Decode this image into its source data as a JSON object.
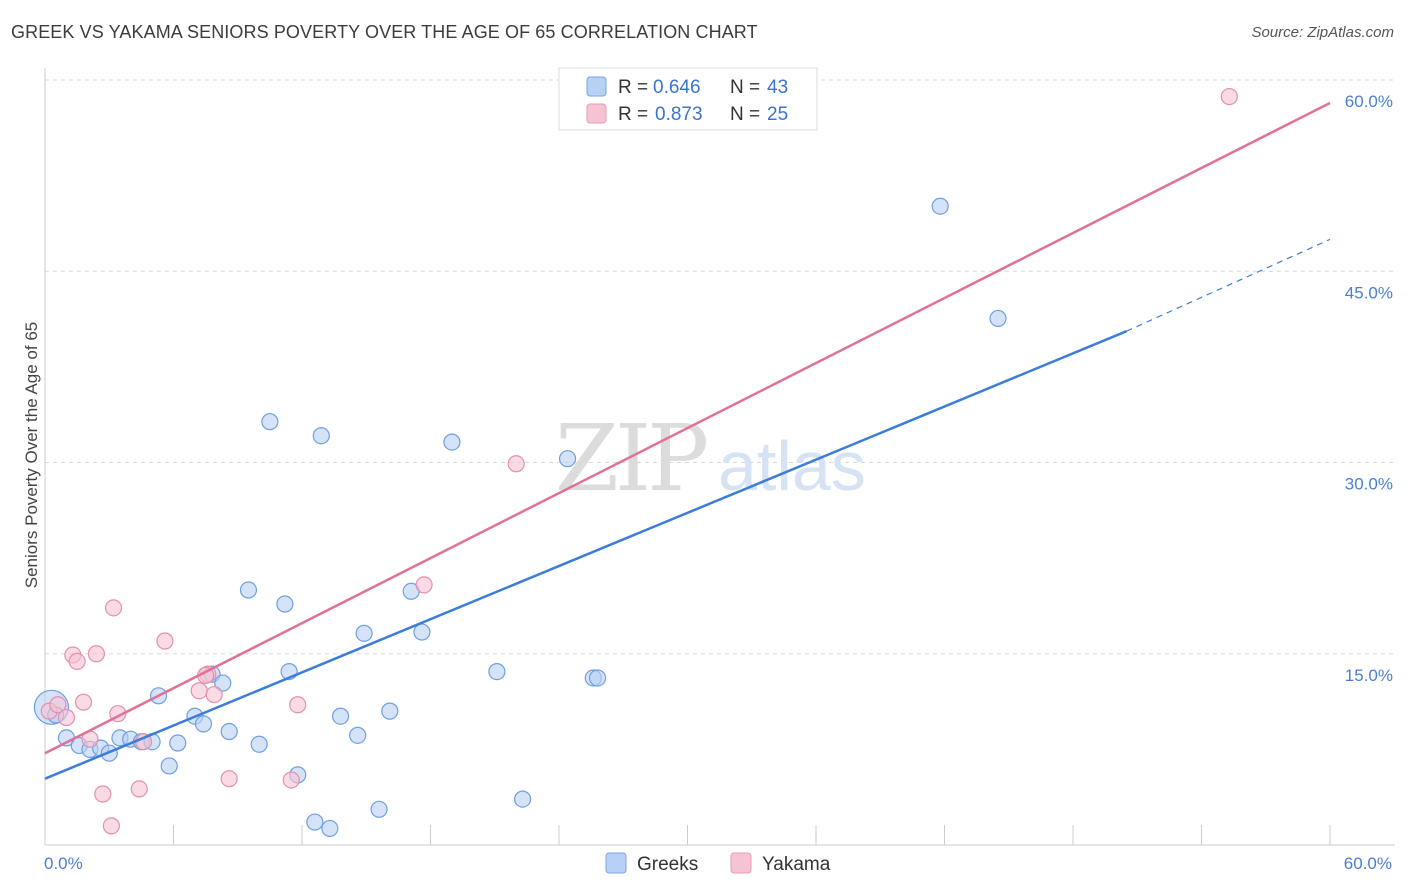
{
  "header": {
    "title": "GREEK VS YAKAMA SENIORS POVERTY OVER THE AGE OF 65 CORRELATION CHART",
    "source": "Source: ZipAtlas.com"
  },
  "watermark": {
    "zip": "ZIP",
    "atlas": "atlas"
  },
  "colors": {
    "greeks": "#3b7dd8",
    "greeks_fill": "#b8d0f3",
    "yakama": "#e07297",
    "yakama_fill": "#f6c3d3",
    "tick": "#4a7fd0",
    "grid": "#d8d8d8"
  },
  "chart_data": {
    "type": "scatter",
    "title": "GREEK VS YAKAMA SENIORS POVERTY OVER THE AGE OF 65 CORRELATION CHART",
    "xlabel": "",
    "ylabel": "Seniors Poverty Over the Age of 65",
    "xlim": [
      0,
      60
    ],
    "ylim": [
      0,
      60
    ],
    "x_tick_labels": [
      "0.0%",
      "60.0%"
    ],
    "y_tick_labels": [
      "15.0%",
      "30.0%",
      "45.0%",
      "60.0%"
    ],
    "y_ticks": [
      15,
      30,
      45,
      60
    ],
    "grid": true,
    "legend": [
      {
        "name": "Greeks",
        "R_label": "R =",
        "R": "0.646",
        "N_label": "N =",
        "N": "43"
      },
      {
        "name": "Yakama",
        "R_label": "R =",
        "R": "0.873",
        "N_label": "N =",
        "N": "25"
      }
    ],
    "series": [
      {
        "name": "Greeks",
        "trend": {
          "x0": 0,
          "y0": 5.2,
          "x1": 50.5,
          "y1": 40.3,
          "dash_to_x": 60,
          "dash_to_y": 47.5
        },
        "points": [
          [
            0.3,
            10.8
          ],
          [
            0.5,
            10.2
          ],
          [
            1.0,
            8.4
          ],
          [
            1.6,
            7.8
          ],
          [
            2.1,
            7.5
          ],
          [
            2.6,
            7.6
          ],
          [
            3.0,
            7.2
          ],
          [
            3.5,
            8.4
          ],
          [
            4.0,
            8.3
          ],
          [
            4.5,
            8.1
          ],
          [
            5.0,
            8.1
          ],
          [
            5.3,
            11.7
          ],
          [
            5.8,
            6.2
          ],
          [
            6.2,
            8.0
          ],
          [
            7.0,
            10.1
          ],
          [
            7.4,
            9.5
          ],
          [
            7.8,
            13.4
          ],
          [
            8.3,
            12.7
          ],
          [
            8.6,
            8.9
          ],
          [
            9.5,
            20.0
          ],
          [
            10.0,
            7.9
          ],
          [
            10.5,
            33.2
          ],
          [
            11.2,
            18.9
          ],
          [
            11.4,
            13.6
          ],
          [
            11.8,
            5.5
          ],
          [
            12.6,
            1.8
          ],
          [
            12.9,
            32.1
          ],
          [
            13.3,
            1.3
          ],
          [
            13.8,
            10.1
          ],
          [
            14.6,
            8.6
          ],
          [
            14.9,
            16.6
          ],
          [
            15.6,
            2.8
          ],
          [
            16.1,
            10.5
          ],
          [
            17.1,
            19.9
          ],
          [
            17.6,
            16.7
          ],
          [
            19.0,
            31.6
          ],
          [
            21.1,
            13.6
          ],
          [
            22.3,
            3.6
          ],
          [
            24.4,
            30.3
          ],
          [
            25.6,
            13.1
          ],
          [
            25.8,
            13.1
          ],
          [
            41.8,
            50.1
          ],
          [
            44.5,
            41.3
          ]
        ]
      },
      {
        "name": "Yakama",
        "trend": {
          "x0": 0,
          "y0": 7.2,
          "x1": 60,
          "y1": 58.2
        },
        "points": [
          [
            0.2,
            10.5
          ],
          [
            0.6,
            11.0
          ],
          [
            1.0,
            10.0
          ],
          [
            1.3,
            14.9
          ],
          [
            1.5,
            14.4
          ],
          [
            1.8,
            11.2
          ],
          [
            2.1,
            8.3
          ],
          [
            2.4,
            15.0
          ],
          [
            2.7,
            4.0
          ],
          [
            3.1,
            1.5
          ],
          [
            3.2,
            18.6
          ],
          [
            3.4,
            10.3
          ],
          [
            4.4,
            4.4
          ],
          [
            4.6,
            8.1
          ],
          [
            5.6,
            16.0
          ],
          [
            7.2,
            12.1
          ],
          [
            7.6,
            13.4
          ],
          [
            7.9,
            11.8
          ],
          [
            8.6,
            5.2
          ],
          [
            11.5,
            5.1
          ],
          [
            11.8,
            11.0
          ],
          [
            22.0,
            29.9
          ],
          [
            17.7,
            20.4
          ],
          [
            55.3,
            58.7
          ],
          [
            7.5,
            13.3
          ]
        ]
      }
    ]
  }
}
